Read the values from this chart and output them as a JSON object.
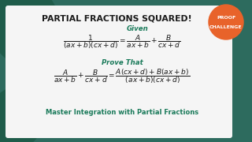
{
  "title": "PARTIAL FRACTIONS SQUARED!",
  "title_color": "#1a1a1a",
  "title_fontsize": 7.8,
  "bg_outer_color": "#2d6b5e",
  "bg_card_color": "#f5f5f5",
  "given_label": "Given",
  "given_color": "#1a7a5a",
  "given_formula": "$\\dfrac{1}{(ax+b)(cx+d)} = \\dfrac{A}{ax+b} + \\dfrac{B}{cx+d}$",
  "prove_label": "Prove That",
  "prove_color": "#1a7a5a",
  "prove_formula": "$\\dfrac{A}{ax+b} + \\dfrac{B}{cx+d} = \\dfrac{A(cx+d)+B(ax+b)}{(ax+b)(cx+d)}$",
  "footer": "Master Integration with Partial Fractions",
  "footer_color": "#1a7a5a",
  "footer_fontsize": 6.0,
  "badge_color": "#e8632a",
  "badge_text_line1": "PROOF",
  "badge_text_line2": "CHALLENGE",
  "badge_text_color": "#ffffff",
  "badge_fontsize": 4.5,
  "formula_color": "#1a1a1a",
  "formula_fontsize": 6.5,
  "label_fontsize": 6.2,
  "blob1_color": "#1f5c4a",
  "blob2_color": "#1f5c4a"
}
